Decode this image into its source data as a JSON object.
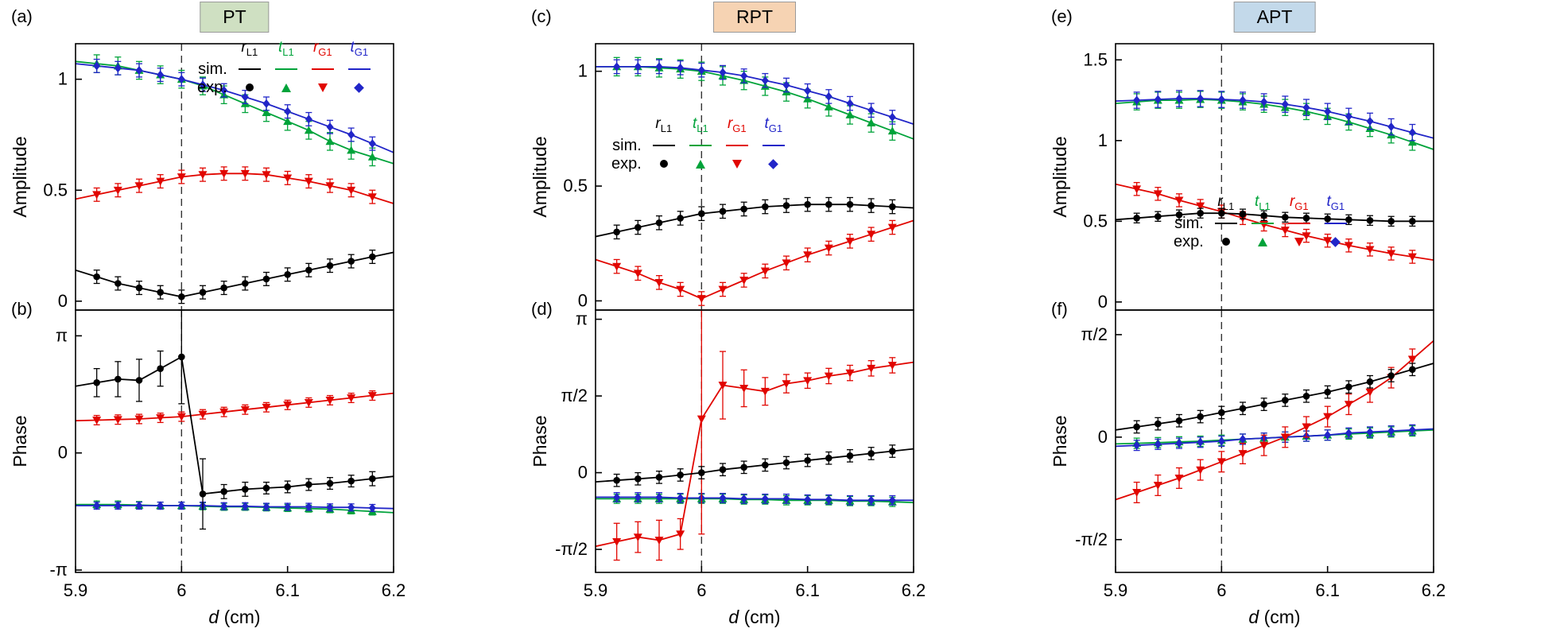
{
  "figure": {
    "xlabel_main": "d",
    "xlabel_rest": "(cm)",
    "background": "#ffffff"
  },
  "legend": {
    "sim_label": "sim.",
    "exp_label": "exp.",
    "entries": [
      {
        "key": "rL1",
        "label_main": "r",
        "label_sub": "L1",
        "color": "#000000",
        "marker": "circle"
      },
      {
        "key": "tL1",
        "label_main": "t",
        "label_sub": "L1",
        "color": "#00a33a",
        "marker": "triangle-up"
      },
      {
        "key": "rG1",
        "label_main": "r",
        "label_sub": "G1",
        "color": "#e10600",
        "marker": "triangle-down"
      },
      {
        "key": "tG1",
        "label_main": "t",
        "label_sub": "G1",
        "color": "#2125c8",
        "marker": "diamond"
      }
    ]
  },
  "chart_data": [
    {
      "id": "a",
      "panel_label": "(a)",
      "badge": "PT",
      "badge_bg": "#cfe0c2",
      "badge_border": "#9a9a9a",
      "type": "line",
      "row": "top",
      "ylabel": "Amplitude",
      "xlim": [
        5.9,
        6.2
      ],
      "ylim": [
        -0.04,
        1.16
      ],
      "vline": 6.0,
      "yticks": [
        {
          "v": 0,
          "label": "0"
        },
        {
          "v": 0.5,
          "label": "0.5"
        },
        {
          "v": 1,
          "label": "1"
        }
      ],
      "xticks": [],
      "x": [
        5.92,
        5.94,
        5.96,
        5.98,
        6.0,
        6.02,
        6.04,
        6.06,
        6.08,
        6.1,
        6.12,
        6.14,
        6.16,
        6.18
      ],
      "series": [
        {
          "key": "tL1",
          "y": [
            1.07,
            1.06,
            1.04,
            1.02,
            1.0,
            0.97,
            0.93,
            0.89,
            0.85,
            0.81,
            0.77,
            0.72,
            0.68,
            0.65
          ],
          "err": 0.04
        },
        {
          "key": "tG1",
          "y": [
            1.06,
            1.05,
            1.04,
            1.02,
            1.0,
            0.975,
            0.95,
            0.92,
            0.89,
            0.855,
            0.82,
            0.785,
            0.75,
            0.71
          ],
          "err": 0.03
        },
        {
          "key": "rG1",
          "y": [
            0.48,
            0.5,
            0.52,
            0.54,
            0.56,
            0.57,
            0.575,
            0.575,
            0.57,
            0.555,
            0.54,
            0.52,
            0.5,
            0.47
          ],
          "err": 0.03
        },
        {
          "key": "rL1",
          "y": [
            0.11,
            0.08,
            0.06,
            0.04,
            0.02,
            0.04,
            0.06,
            0.08,
            0.1,
            0.12,
            0.14,
            0.16,
            0.18,
            0.2
          ],
          "err": 0.03
        }
      ]
    },
    {
      "id": "b",
      "panel_label": "(b)",
      "type": "line",
      "row": "bottom",
      "ylabel": "Phase",
      "y_unit": "pi",
      "xlim": [
        5.9,
        6.2
      ],
      "ylim": [
        -1.02,
        1.22
      ],
      "vline": 6.0,
      "yticks": [
        {
          "v": 1,
          "label": "π"
        },
        {
          "v": 0,
          "label": "0"
        },
        {
          "v": -1,
          "label": "-π"
        }
      ],
      "xticks": [
        {
          "v": 5.9,
          "label": "5.9"
        },
        {
          "v": 6.0,
          "label": "6"
        },
        {
          "v": 6.1,
          "label": "6.1"
        },
        {
          "v": 6.2,
          "label": "6.2"
        }
      ],
      "x": [
        5.92,
        5.94,
        5.96,
        5.98,
        6.0,
        6.02,
        6.04,
        6.06,
        6.08,
        6.1,
        6.12,
        6.14,
        6.16,
        6.18
      ],
      "series": [
        {
          "key": "tL1",
          "y": [
            -0.44,
            -0.44,
            -0.445,
            -0.45,
            -0.45,
            -0.455,
            -0.46,
            -0.46,
            -0.465,
            -0.47,
            -0.475,
            -0.48,
            -0.49,
            -0.5
          ],
          "err": 0.03
        },
        {
          "key": "tG1",
          "y": [
            -0.45,
            -0.45,
            -0.45,
            -0.45,
            -0.45,
            -0.45,
            -0.455,
            -0.455,
            -0.46,
            -0.46,
            -0.46,
            -0.465,
            -0.465,
            -0.47
          ],
          "err": 0.03
        },
        {
          "key": "rG1",
          "y": [
            0.28,
            0.285,
            0.29,
            0.3,
            0.31,
            0.33,
            0.35,
            0.37,
            0.39,
            0.41,
            0.43,
            0.45,
            0.47,
            0.49
          ],
          "err": 0.04
        },
        {
          "key": "rL1",
          "y": [
            0.6,
            0.63,
            0.62,
            0.72,
            0.82,
            -0.35,
            -0.33,
            -0.31,
            -0.3,
            -0.29,
            -0.27,
            -0.26,
            -0.24,
            -0.22
          ],
          "err": [
            0.12,
            0.15,
            0.18,
            0.15,
            0.4,
            0.3,
            0.06,
            0.06,
            0.05,
            0.05,
            0.05,
            0.05,
            0.05,
            0.06
          ]
        }
      ]
    },
    {
      "id": "c",
      "panel_label": "(c)",
      "badge": "RPT",
      "badge_bg": "#f6d3b3",
      "badge_border": "#9a9a9a",
      "type": "line",
      "row": "top",
      "ylabel": "Amplitude",
      "xlim": [
        5.9,
        6.2
      ],
      "ylim": [
        -0.04,
        1.12
      ],
      "vline": 6.0,
      "yticks": [
        {
          "v": 0,
          "label": "0"
        },
        {
          "v": 0.5,
          "label": "0.5"
        },
        {
          "v": 1,
          "label": "1"
        }
      ],
      "xticks": [],
      "x": [
        5.92,
        5.94,
        5.96,
        5.98,
        6.0,
        6.02,
        6.04,
        6.06,
        6.08,
        6.1,
        6.12,
        6.14,
        6.16,
        6.18
      ],
      "series": [
        {
          "key": "tL1",
          "y": [
            1.02,
            1.02,
            1.015,
            1.01,
            1.0,
            0.98,
            0.96,
            0.935,
            0.91,
            0.88,
            0.845,
            0.81,
            0.775,
            0.74
          ],
          "err": 0.04
        },
        {
          "key": "tG1",
          "y": [
            1.02,
            1.02,
            1.02,
            1.015,
            1.005,
            0.995,
            0.98,
            0.96,
            0.94,
            0.915,
            0.89,
            0.86,
            0.83,
            0.8
          ],
          "err": 0.03
        },
        {
          "key": "rG1",
          "y": [
            0.15,
            0.12,
            0.08,
            0.05,
            0.01,
            0.05,
            0.09,
            0.13,
            0.165,
            0.2,
            0.23,
            0.26,
            0.29,
            0.32
          ],
          "err": 0.03
        },
        {
          "key": "rL1",
          "y": [
            0.3,
            0.32,
            0.34,
            0.36,
            0.38,
            0.39,
            0.4,
            0.41,
            0.415,
            0.42,
            0.42,
            0.42,
            0.415,
            0.41
          ],
          "err": 0.03
        }
      ]
    },
    {
      "id": "d",
      "panel_label": "(d)",
      "type": "line",
      "row": "bottom",
      "ylabel": "Phase",
      "y_unit": "pi",
      "xlim": [
        5.9,
        6.2
      ],
      "ylim": [
        -0.65,
        1.06
      ],
      "vline": 6.0,
      "yticks": [
        {
          "v": 1,
          "label": "π"
        },
        {
          "v": 0.5,
          "label": "π/2"
        },
        {
          "v": 0,
          "label": "0"
        },
        {
          "v": -0.5,
          "label": "-π/2"
        }
      ],
      "xticks": [
        {
          "v": 5.9,
          "label": "5.9"
        },
        {
          "v": 6.0,
          "label": "6"
        },
        {
          "v": 6.1,
          "label": "6.1"
        },
        {
          "v": 6.2,
          "label": "6.2"
        }
      ],
      "x": [
        5.92,
        5.94,
        5.96,
        5.98,
        6.0,
        6.02,
        6.04,
        6.06,
        6.08,
        6.1,
        6.12,
        6.14,
        6.16,
        6.18
      ],
      "series": [
        {
          "key": "tL1",
          "y": [
            -0.17,
            -0.17,
            -0.17,
            -0.17,
            -0.17,
            -0.17,
            -0.175,
            -0.175,
            -0.18,
            -0.18,
            -0.18,
            -0.185,
            -0.185,
            -0.19
          ],
          "err": 0.03
        },
        {
          "key": "tG1",
          "y": [
            -0.16,
            -0.16,
            -0.16,
            -0.165,
            -0.165,
            -0.165,
            -0.17,
            -0.17,
            -0.17,
            -0.175,
            -0.175,
            -0.18,
            -0.18,
            -0.18
          ],
          "err": 0.03
        },
        {
          "key": "rG1",
          "y": [
            -0.45,
            -0.42,
            -0.44,
            -0.4,
            0.35,
            0.57,
            0.55,
            0.53,
            0.58,
            0.6,
            0.63,
            0.65,
            0.68,
            0.7
          ],
          "err": [
            0.12,
            0.1,
            0.13,
            0.1,
            0.75,
            0.22,
            0.12,
            0.09,
            0.06,
            0.05,
            0.05,
            0.05,
            0.05,
            0.05
          ]
        },
        {
          "key": "rL1",
          "y": [
            -0.05,
            -0.04,
            -0.03,
            -0.015,
            0.0,
            0.02,
            0.035,
            0.05,
            0.065,
            0.08,
            0.095,
            0.11,
            0.125,
            0.14
          ],
          "err": 0.04
        }
      ]
    },
    {
      "id": "e",
      "panel_label": "(e)",
      "badge": "APT",
      "badge_bg": "#c3d9ea",
      "badge_border": "#9a9a9a",
      "type": "line",
      "row": "top",
      "ylabel": "Amplitude",
      "xlim": [
        5.9,
        6.2
      ],
      "ylim": [
        -0.05,
        1.6
      ],
      "vline": 6.0,
      "yticks": [
        {
          "v": 0,
          "label": "0"
        },
        {
          "v": 0.5,
          "label": "0.5"
        },
        {
          "v": 1,
          "label": "1"
        },
        {
          "v": 1.5,
          "label": "1.5"
        }
      ],
      "xticks": [],
      "x": [
        5.92,
        5.94,
        5.96,
        5.98,
        6.0,
        6.02,
        6.04,
        6.06,
        6.08,
        6.1,
        6.12,
        6.14,
        6.16,
        6.18
      ],
      "series": [
        {
          "key": "tL1",
          "y": [
            1.24,
            1.25,
            1.25,
            1.255,
            1.25,
            1.24,
            1.225,
            1.205,
            1.18,
            1.15,
            1.115,
            1.075,
            1.035,
            0.99
          ],
          "err": 0.05
        },
        {
          "key": "tG1",
          "y": [
            1.25,
            1.255,
            1.26,
            1.26,
            1.255,
            1.25,
            1.24,
            1.225,
            1.205,
            1.18,
            1.15,
            1.12,
            1.085,
            1.05
          ],
          "err": 0.05
        },
        {
          "key": "rG1",
          "y": [
            0.7,
            0.67,
            0.63,
            0.595,
            0.56,
            0.52,
            0.48,
            0.445,
            0.41,
            0.38,
            0.35,
            0.325,
            0.3,
            0.28
          ],
          "err": 0.04
        },
        {
          "key": "rL1",
          "y": [
            0.52,
            0.53,
            0.54,
            0.55,
            0.55,
            0.545,
            0.535,
            0.525,
            0.52,
            0.515,
            0.51,
            0.505,
            0.5,
            0.5
          ],
          "err": 0.03
        }
      ]
    },
    {
      "id": "f",
      "panel_label": "(f)",
      "type": "line",
      "row": "bottom",
      "ylabel": "Phase",
      "y_unit": "pi",
      "xlim": [
        5.9,
        6.2
      ],
      "ylim": [
        -0.66,
        0.62
      ],
      "vline": 6.0,
      "yticks": [
        {
          "v": 0.5,
          "label": "π/2"
        },
        {
          "v": 0,
          "label": "0"
        },
        {
          "v": -0.5,
          "label": "-π/2"
        }
      ],
      "xticks": [
        {
          "v": 5.9,
          "label": "5.9"
        },
        {
          "v": 6.0,
          "label": "6"
        },
        {
          "v": 6.1,
          "label": "6.1"
        },
        {
          "v": 6.2,
          "label": "6.2"
        }
      ],
      "x": [
        5.92,
        5.94,
        5.96,
        5.98,
        6.0,
        6.02,
        6.04,
        6.06,
        6.08,
        6.1,
        6.12,
        6.14,
        6.16,
        6.18
      ],
      "series": [
        {
          "key": "tL1",
          "y": [
            -0.03,
            -0.027,
            -0.023,
            -0.02,
            -0.015,
            -0.01,
            -0.005,
            0.0,
            0.005,
            0.01,
            0.015,
            0.02,
            0.025,
            0.03
          ],
          "err": 0.025
        },
        {
          "key": "tG1",
          "y": [
            -0.04,
            -0.035,
            -0.03,
            -0.025,
            -0.02,
            -0.01,
            -0.005,
            0.0,
            0.005,
            0.01,
            0.02,
            0.025,
            0.03,
            0.035
          ],
          "err": 0.025
        },
        {
          "key": "rG1",
          "y": [
            -0.27,
            -0.235,
            -0.2,
            -0.16,
            -0.12,
            -0.08,
            -0.04,
            0.0,
            0.05,
            0.1,
            0.16,
            0.22,
            0.29,
            0.38
          ],
          "err": 0.05
        },
        {
          "key": "rL1",
          "y": [
            0.05,
            0.065,
            0.08,
            0.1,
            0.12,
            0.14,
            0.16,
            0.18,
            0.2,
            0.22,
            0.245,
            0.27,
            0.3,
            0.33
          ],
          "err": 0.03
        }
      ]
    }
  ]
}
